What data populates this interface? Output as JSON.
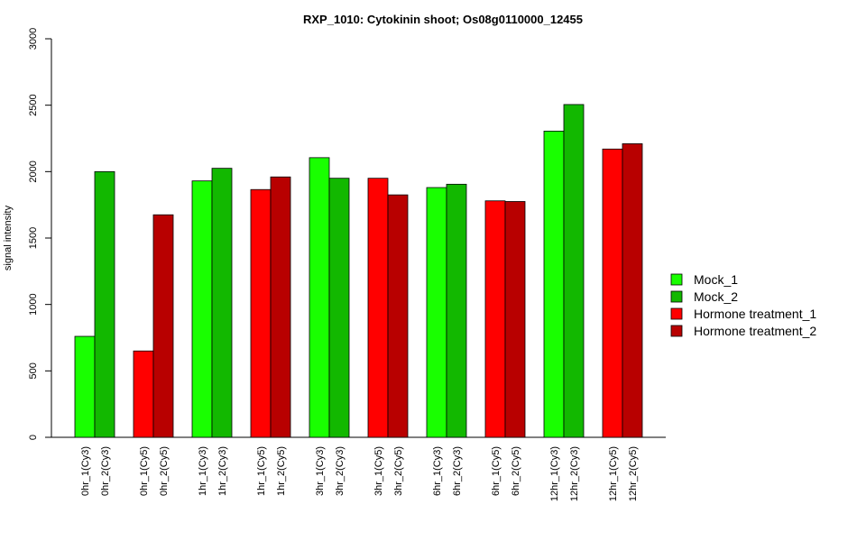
{
  "chart_data": {
    "type": "bar",
    "title": "RXP_1010: Cytokinin shoot; Os08g0110000_12455",
    "xlabel": "",
    "ylabel": "signal intensity",
    "ylim": [
      0,
      3000
    ],
    "yticks": [
      0,
      500,
      1000,
      1500,
      2000,
      2500,
      3000
    ],
    "grid": false,
    "legend_position": "right",
    "categories": [
      "0hr_1(Cy3)",
      "0hr_2(Cy3)",
      "0hr_1(Cy5)",
      "0hr_2(Cy5)",
      "1hr_1(Cy3)",
      "1hr_2(Cy3)",
      "1hr_1(Cy5)",
      "1hr_2(Cy5)",
      "3hr_1(Cy3)",
      "3hr_2(Cy3)",
      "3hr_1(Cy5)",
      "3hr_2(Cy5)",
      "6hr_1(Cy3)",
      "6hr_2(Cy3)",
      "6hr_1(Cy5)",
      "6hr_2(Cy5)",
      "12hr_1(Cy3)",
      "12hr_2(Cy3)",
      "12hr_1(Cy5)",
      "12hr_2(Cy5)"
    ],
    "values": [
      760,
      2000,
      650,
      1675,
      1930,
      2025,
      1865,
      1960,
      2105,
      1950,
      1950,
      1825,
      1880,
      1905,
      1780,
      1775,
      2305,
      2505,
      2170,
      2210
    ],
    "bar_series": [
      0,
      1,
      2,
      3,
      0,
      1,
      2,
      3,
      0,
      1,
      2,
      3,
      0,
      1,
      2,
      3,
      0,
      1,
      2,
      3
    ],
    "series": [
      {
        "name": "Mock_1",
        "color": "#19ff00"
      },
      {
        "name": "Mock_2",
        "color": "#12b800"
      },
      {
        "name": "Hormone treatment_1",
        "color": "#ff0000"
      },
      {
        "name": "Hormone treatment_2",
        "color": "#b80000"
      }
    ]
  }
}
